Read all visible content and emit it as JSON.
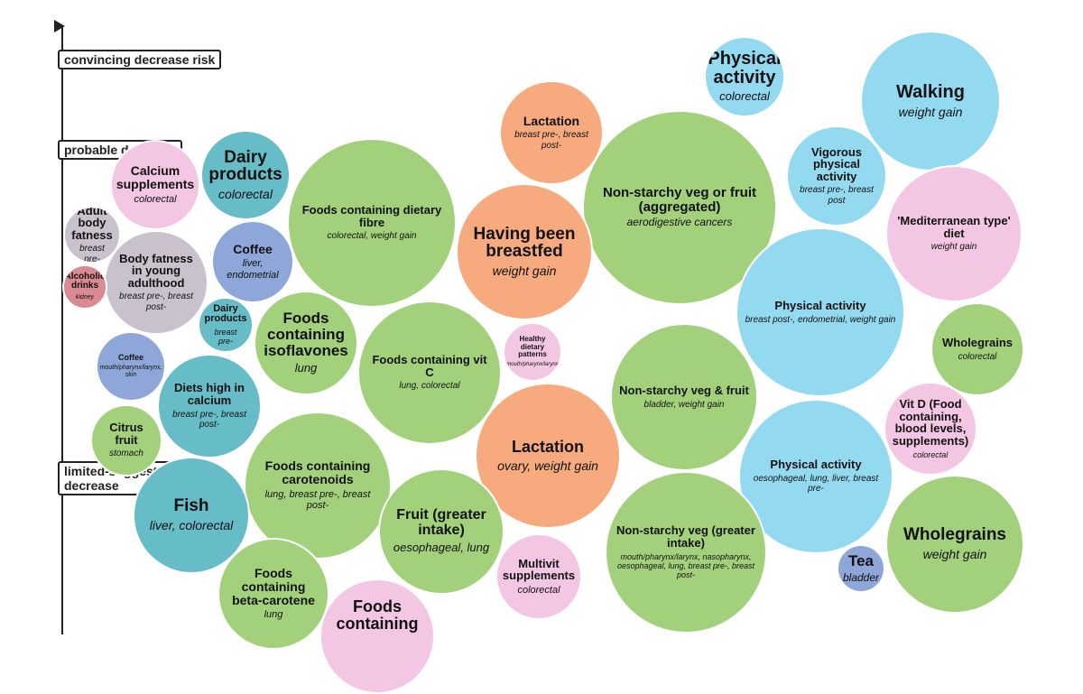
{
  "axis": {
    "labels": [
      "convincing decrease risk",
      "probable decrease",
      "limited-suggestive decrease"
    ]
  },
  "colors": {
    "green": "#a3d17b",
    "blue": "#93d9f0",
    "pink": "#f3c6e3",
    "orange": "#f6aa7d",
    "teal": "#66bcc7",
    "periwinkle": "#8ea6d8",
    "grey": "#c9c2cc",
    "red": "#d98a93"
  },
  "bubbles": [
    {
      "title": "Physical activity",
      "subtitle": "colorectal",
      "color": "blue"
    },
    {
      "title": "Walking",
      "subtitle": "weight gain",
      "color": "blue"
    },
    {
      "title": "Lactation",
      "subtitle": "breast pre-, breast post-",
      "color": "orange"
    },
    {
      "title": "Non-starchy veg or fruit (aggregated)",
      "subtitle": "aerodigestive cancers",
      "color": "green"
    },
    {
      "title": "Vigorous physical activity",
      "subtitle": "breast pre-, breast post",
      "color": "blue"
    },
    {
      "title": "Dairy products",
      "subtitle": "colorectal",
      "color": "teal"
    },
    {
      "title": "Calcium supplements",
      "subtitle": "colorectal",
      "color": "pink"
    },
    {
      "title": "Foods containing dietary fibre",
      "subtitle": "colorectal, weight gain",
      "color": "green"
    },
    {
      "title": "Having been breastfed",
      "subtitle": "weight gain",
      "color": "orange"
    },
    {
      "title": "'Mediterranean type' diet",
      "subtitle": "weight gain",
      "color": "pink"
    },
    {
      "title": "Adult body fatness",
      "subtitle": "breast pre-",
      "color": "grey"
    },
    {
      "title": "Coffee",
      "subtitle": "liver, endometrial",
      "color": "periwinkle"
    },
    {
      "title": "Body fatness in young adulthood",
      "subtitle": "breast pre-, breast post-",
      "color": "grey"
    },
    {
      "title": "Alcoholic drinks",
      "subtitle": "kidney",
      "color": "red"
    },
    {
      "title": "Physical activity",
      "subtitle": "breast post-, endometrial, weight gain",
      "color": "blue"
    },
    {
      "title": "Dairy products",
      "subtitle": "breast pre-",
      "color": "teal"
    },
    {
      "title": "Foods containing isoflavones",
      "subtitle": "lung",
      "color": "green"
    },
    {
      "title": "Healthy dietary patterns",
      "subtitle": "mouth/pharynx/larynx",
      "color": "pink"
    },
    {
      "title": "Wholegrains",
      "subtitle": "colorectal",
      "color": "green"
    },
    {
      "title": "Coffee",
      "subtitle": "mouth/pharynx/larynx, skin",
      "color": "periwinkle"
    },
    {
      "title": "Foods containing vit C",
      "subtitle": "lung, colorectal",
      "color": "green"
    },
    {
      "title": "Non-starchy veg & fruit",
      "subtitle": "bladder, weight gain",
      "color": "green"
    },
    {
      "title": "Diets high in calcium",
      "subtitle": "breast pre-, breast post-",
      "color": "teal"
    },
    {
      "title": "Vit D (Food containing, blood levels, supplements)",
      "subtitle": "colorectal",
      "color": "pink"
    },
    {
      "title": "Citrus fruit",
      "subtitle": "stomach",
      "color": "green"
    },
    {
      "title": "Lactation",
      "subtitle": "ovary, weight gain",
      "color": "orange"
    },
    {
      "title": "Foods containing carotenoids",
      "subtitle": "lung, breast pre-, breast post-",
      "color": "green"
    },
    {
      "title": "Physical activity",
      "subtitle": "oesophageal, lung, liver, breast pre-",
      "color": "blue"
    },
    {
      "title": "Fish",
      "subtitle": "liver, colorectal",
      "color": "teal"
    },
    {
      "title": "Fruit (greater intake)",
      "subtitle": "oesophageal, lung",
      "color": "green"
    },
    {
      "title": "Wholegrains",
      "subtitle": "weight gain",
      "color": "green"
    },
    {
      "title": "Non-starchy veg (greater intake)",
      "subtitle": "mouth/pharynx/larynx, nasopharynx, oesophageal, lung, breast pre-, breast post-",
      "color": "green"
    },
    {
      "title": "Multivit supplements",
      "subtitle": "colorectal",
      "color": "pink"
    },
    {
      "title": "Tea",
      "subtitle": "bladder",
      "color": "periwinkle"
    },
    {
      "title": "Foods containing beta-carotene",
      "subtitle": "lung",
      "color": "green"
    },
    {
      "title": "Foods containing",
      "subtitle": "",
      "color": "pink"
    }
  ]
}
